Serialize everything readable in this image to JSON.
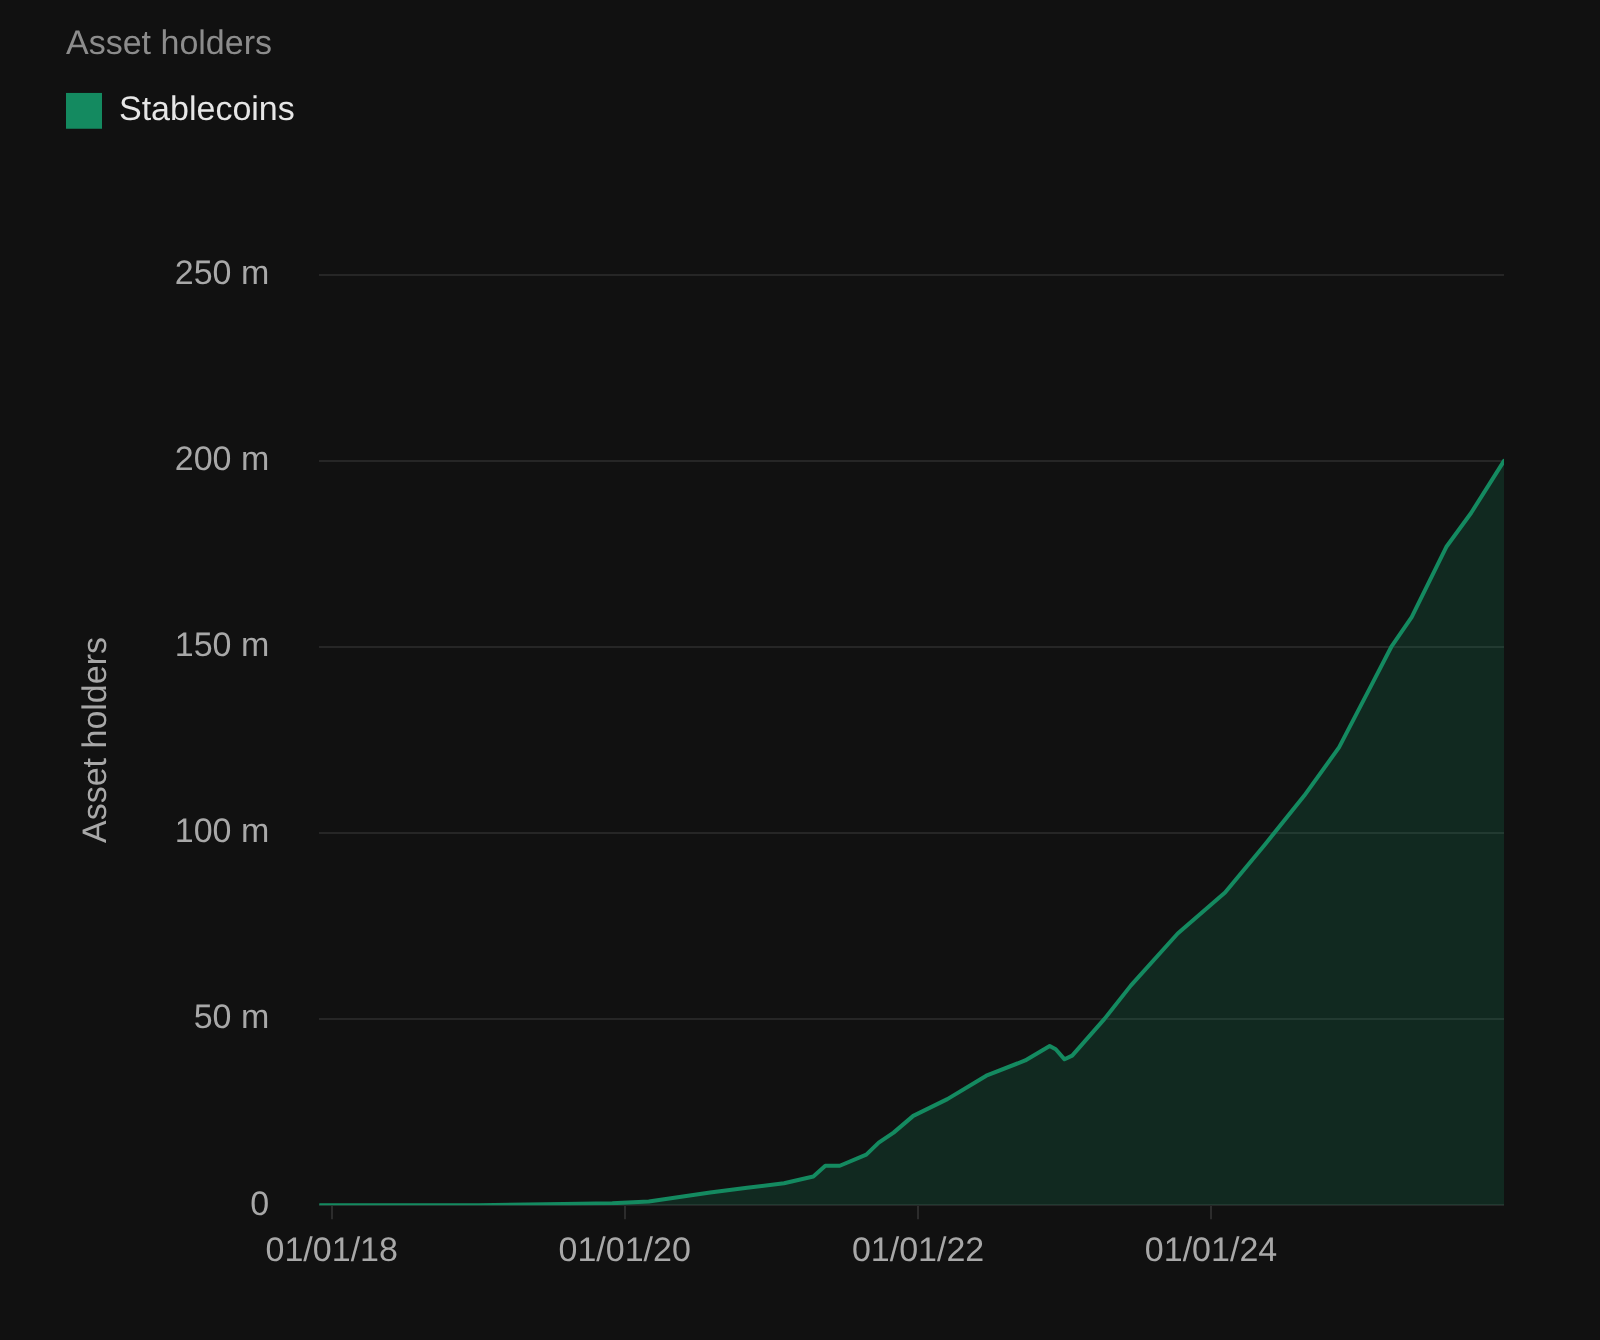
{
  "chart_data": {
    "type": "area",
    "title": "Asset holders",
    "ylabel": "Asset holders",
    "x": [
      "2017-12-01",
      "2018-06-01",
      "2019-01-01",
      "2019-08-01",
      "2019-12-01",
      "2020-03-01",
      "2020-08-01",
      "2020-11-01",
      "2021-02-01",
      "2021-04-15",
      "2021-05-15",
      "2021-06-20",
      "2021-08-25",
      "2021-09-25",
      "2021-11-01",
      "2021-12-20",
      "2022-03-15",
      "2022-06-20",
      "2022-09-25",
      "2022-11-25",
      "2022-12-10",
      "2023-01-01",
      "2023-01-20",
      "2023-04-10",
      "2023-06-15",
      "2023-10-10",
      "2024-02-05",
      "2024-05-15",
      "2024-08-20",
      "2024-11-15",
      "2025-02-05",
      "2025-03-25",
      "2025-05-15",
      "2025-08-10",
      "2025-10-10",
      "2025-12-31"
    ],
    "series": [
      {
        "name": "Stablecoins",
        "color": "#148a60",
        "values": [
          0,
          0,
          0,
          0.3,
          0.5,
          1,
          3.4,
          4.7,
          5.9,
          7.7,
          10.6,
          10.6,
          13.6,
          16.8,
          19.5,
          24,
          28.5,
          34.8,
          38.9,
          42.8,
          41.9,
          39.2,
          40.2,
          50,
          59,
          73,
          84,
          97,
          110,
          123,
          140,
          150,
          158,
          177,
          186,
          200
        ]
      }
    ],
    "xlim": [
      "2017-12-01",
      "2025-12-31"
    ],
    "xticks": [
      {
        "value": "2018-01-01",
        "label": "01/01/18"
      },
      {
        "value": "2020-01-01",
        "label": "01/01/20"
      },
      {
        "value": "2022-01-01",
        "label": "01/01/22"
      },
      {
        "value": "2024-01-01",
        "label": "01/01/24"
      }
    ],
    "ylim": [
      0,
      250
    ],
    "yticks": [
      0,
      {
        "value": 50,
        "label": "50 m"
      },
      {
        "value": 100,
        "label": "100 m"
      },
      {
        "value": 150,
        "label": "150 m"
      },
      {
        "value": 200,
        "label": "200 m"
      },
      {
        "value": 250,
        "label": "250 m"
      }
    ],
    "grid": "y",
    "legend": "top left"
  }
}
